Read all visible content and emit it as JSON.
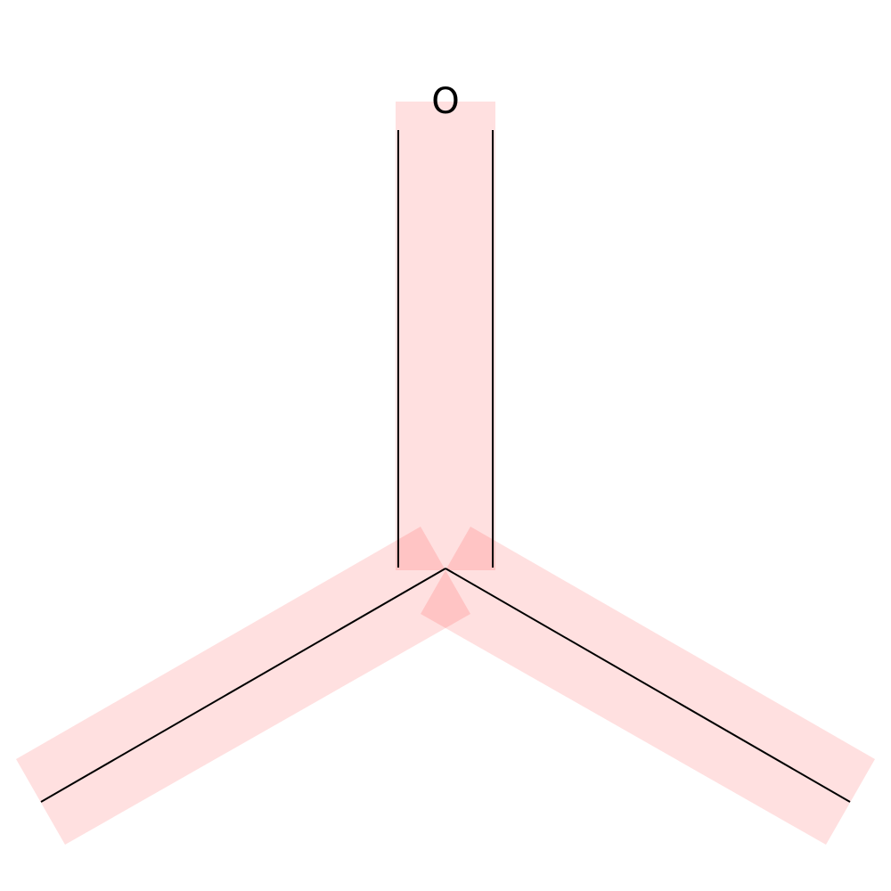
{
  "molecule": {
    "atoms": [
      {
        "id": "O1",
        "symbol": "O",
        "label": "O"
      },
      {
        "id": "C2",
        "symbol": "C",
        "label": ""
      },
      {
        "id": "C3",
        "symbol": "C",
        "label": ""
      },
      {
        "id": "C4",
        "symbol": "C",
        "label": ""
      }
    ],
    "bonds": [
      {
        "from": "C2",
        "to": "O1",
        "order": 2,
        "highlighted": true
      },
      {
        "from": "C2",
        "to": "C3",
        "order": 1,
        "highlighted": true
      },
      {
        "from": "C2",
        "to": "C4",
        "order": 1,
        "highlighted": true
      }
    ]
  },
  "colors": {
    "highlight": "#ff0000",
    "bond": "#000000",
    "background": "#ffffff"
  }
}
